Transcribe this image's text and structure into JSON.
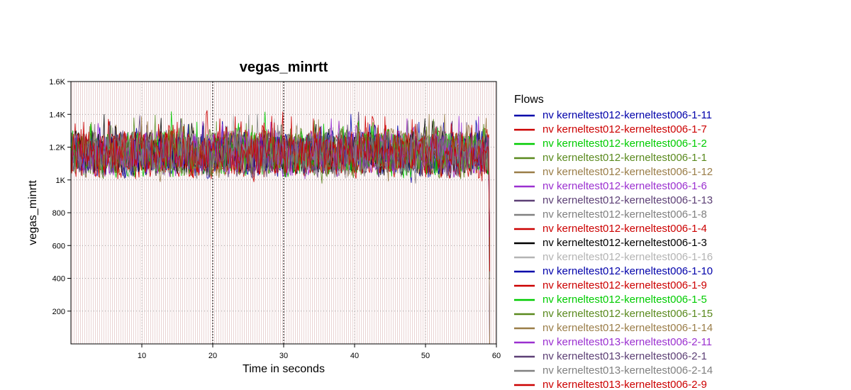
{
  "chart_data": {
    "type": "line",
    "title": "vegas_minrtt",
    "xlabel": "Time in seconds",
    "ylabel": "vegas_minrtt",
    "xlim": [
      0,
      60
    ],
    "ylim": [
      0,
      1600
    ],
    "x_ticks": [
      10,
      20,
      30,
      40,
      50,
      60
    ],
    "y_ticks": [
      200,
      400,
      600,
      800,
      1000,
      1200,
      1400,
      1600
    ],
    "y_tick_labels": [
      "200",
      "400",
      "600",
      "800",
      "1K",
      "1.2K",
      "1.4K",
      "1.6K"
    ],
    "major_grid_x": [
      20,
      30
    ],
    "background_stripes": true,
    "legend_title": "Flows",
    "legend_position": "right",
    "series_summary": {
      "x_start": 0,
      "x_end": 59,
      "typical_range": [
        1000,
        1400
      ],
      "peak": 1500,
      "trough": 930,
      "drop_at_end_to": 0
    },
    "series": [
      {
        "name": "nv kerneltest012-kerneltest006-1-11",
        "color": "#0000aa"
      },
      {
        "name": "nv kerneltest012-kerneltest006-1-7",
        "color": "#cc0000"
      },
      {
        "name": "nv kerneltest012-kerneltest006-1-2",
        "color": "#00cc00"
      },
      {
        "name": "nv kerneltest012-kerneltest006-1-1",
        "color": "#5a8a1e"
      },
      {
        "name": "nv kerneltest012-kerneltest006-1-12",
        "color": "#9a7d48"
      },
      {
        "name": "nv kerneltest012-kerneltest006-1-6",
        "color": "#9b30d0"
      },
      {
        "name": "nv kerneltest012-kerneltest006-1-13",
        "color": "#5c3f75"
      },
      {
        "name": "nv kerneltest012-kerneltest006-1-8",
        "color": "#808080"
      },
      {
        "name": "nv kerneltest012-kerneltest006-1-4",
        "color": "#cc0000"
      },
      {
        "name": "nv kerneltest012-kerneltest006-1-3",
        "color": "#000000"
      },
      {
        "name": "nv kerneltest012-kerneltest006-1-16",
        "color": "#b4b4b4"
      },
      {
        "name": "nv kerneltest012-kerneltest006-1-10",
        "color": "#0000aa"
      },
      {
        "name": "nv kerneltest012-kerneltest006-1-9",
        "color": "#cc0000"
      },
      {
        "name": "nv kerneltest012-kerneltest006-1-5",
        "color": "#00cc00"
      },
      {
        "name": "nv kerneltest012-kerneltest006-1-15",
        "color": "#5a8a1e"
      },
      {
        "name": "nv kerneltest012-kerneltest006-1-14",
        "color": "#9a7d48"
      },
      {
        "name": "nv kerneltest013-kerneltest006-2-11",
        "color": "#9b30d0"
      },
      {
        "name": "nv kerneltest013-kerneltest006-2-1",
        "color": "#5c3f75"
      },
      {
        "name": "nv kerneltest013-kerneltest006-2-14",
        "color": "#808080"
      },
      {
        "name": "nv kerneltest013-kerneltest006-2-9",
        "color": "#cc0000"
      }
    ]
  }
}
